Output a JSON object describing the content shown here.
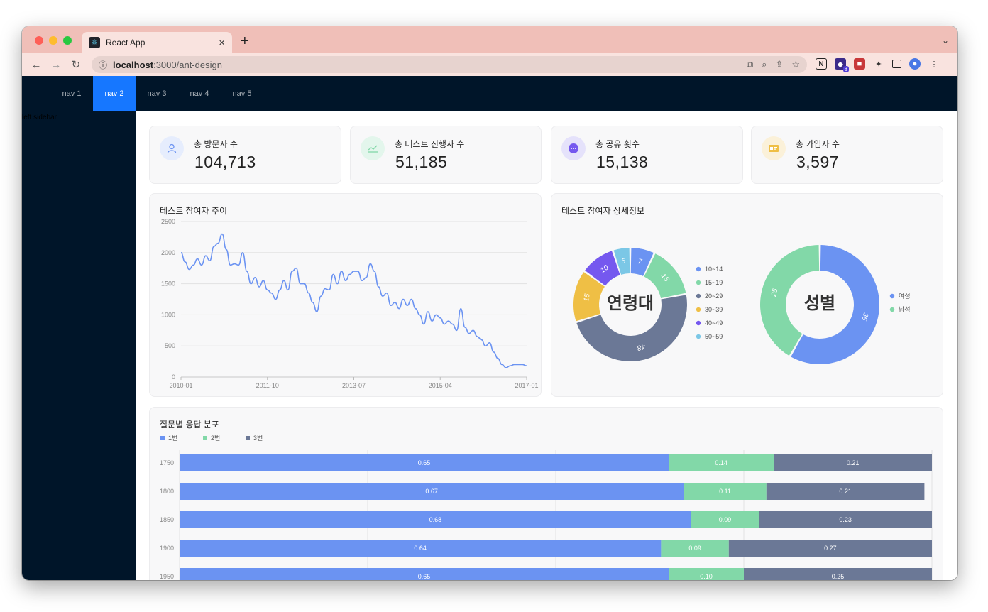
{
  "browser": {
    "tab_title": "React App",
    "tab_close": "×",
    "new_tab": "+",
    "url_host": "localhost",
    "url_path": ":3000/ant-design",
    "extension_badge": "8"
  },
  "nav": {
    "items": [
      "nav 1",
      "nav 2",
      "nav 3",
      "nav 4",
      "nav 5"
    ],
    "active_index": 1,
    "active_color": "#1677ff",
    "background": "#001529"
  },
  "sidebar": {
    "label": "left sidebar"
  },
  "stats": [
    {
      "label": "총 방문자 수",
      "value": "104,713",
      "icon": "user-icon"
    },
    {
      "label": "총 테스트 진행자 수",
      "value": "51,185",
      "icon": "line-chart-icon"
    },
    {
      "label": "총 공유 횟수",
      "value": "15,138",
      "icon": "message-icon"
    },
    {
      "label": "총 가입자 수",
      "value": "3,597",
      "icon": "id-card-icon"
    }
  ],
  "line_card": {
    "title": "테스트 참여자 추이"
  },
  "donut_card": {
    "title": "테스트 참여자 상세정보",
    "age_center": "연령대",
    "gender_center": "성별"
  },
  "bar_card": {
    "title": "질문별 응답 분포"
  },
  "chart_data": [
    {
      "type": "line",
      "title": "테스트 참여자 추이",
      "x_ticks": [
        "2010-01",
        "2011-10",
        "2013-07",
        "2015-04",
        "2017-01"
      ],
      "y_ticks": [
        0,
        500,
        1000,
        1500,
        2000,
        2500
      ],
      "ylim": [
        0,
        2500
      ],
      "grid": true,
      "color": "#6b93f2",
      "x": [
        "2010-01",
        "2010-02",
        "2010-03",
        "2010-04",
        "2010-05",
        "2010-06",
        "2010-07",
        "2010-08",
        "2010-09",
        "2010-10",
        "2010-11",
        "2010-12",
        "2011-01",
        "2011-02",
        "2011-03",
        "2011-04",
        "2011-05",
        "2011-06",
        "2011-07",
        "2011-08",
        "2011-09",
        "2011-10",
        "2011-11",
        "2011-12",
        "2012-01",
        "2012-02",
        "2012-03",
        "2012-04",
        "2012-05",
        "2012-06",
        "2012-07",
        "2012-08",
        "2012-09",
        "2012-10",
        "2012-11",
        "2012-12",
        "2013-01",
        "2013-02",
        "2013-03",
        "2013-04",
        "2013-05",
        "2013-06",
        "2013-07",
        "2013-08",
        "2013-09",
        "2013-10",
        "2013-11",
        "2013-12",
        "2014-01",
        "2014-02",
        "2014-03",
        "2014-04",
        "2014-05",
        "2014-06",
        "2014-07",
        "2014-08",
        "2014-09",
        "2014-10",
        "2014-11",
        "2014-12",
        "2015-01",
        "2015-02",
        "2015-03",
        "2015-04",
        "2015-05",
        "2015-06",
        "2015-07",
        "2015-08",
        "2015-09",
        "2015-10",
        "2015-11",
        "2015-12",
        "2016-01",
        "2016-02",
        "2016-03",
        "2016-04",
        "2016-05",
        "2016-06",
        "2016-07",
        "2016-08",
        "2016-09",
        "2016-10",
        "2016-11",
        "2016-12",
        "2017-01"
      ],
      "values": [
        2000,
        1850,
        1730,
        1800,
        1900,
        1800,
        1950,
        1870,
        2100,
        2150,
        2300,
        2050,
        1800,
        1820,
        1800,
        2000,
        1700,
        1500,
        1600,
        1450,
        1550,
        1400,
        1350,
        1250,
        1400,
        1550,
        1400,
        1700,
        1750,
        1500,
        1500,
        1350,
        1200,
        1050,
        1300,
        1420,
        1400,
        1650,
        1500,
        1700,
        1550,
        1650,
        1700,
        1700,
        1550,
        1600,
        1820,
        1700,
        1450,
        1300,
        1350,
        1150,
        1200,
        1100,
        1250,
        1150,
        1250,
        1100,
        1000,
        850,
        1050,
        900,
        1000,
        950,
        850,
        900,
        850,
        750,
        1100,
        800,
        700,
        750,
        650,
        600,
        500,
        550,
        400,
        300,
        200,
        150,
        180,
        200,
        200,
        200,
        180
      ]
    },
    {
      "type": "pie",
      "title": "연령대",
      "categories": [
        "10~14",
        "15~19",
        "20~29",
        "30~39",
        "40~49",
        "50~59"
      ],
      "values": [
        7,
        15,
        48,
        15,
        10,
        5
      ],
      "colors": [
        "#6b93f2",
        "#82d8a8",
        "#6b7896",
        "#efbf45",
        "#7558ef",
        "#7bc7e6"
      ],
      "legend": "right"
    },
    {
      "type": "pie",
      "title": "성별",
      "categories": [
        "여성",
        "남성"
      ],
      "values": [
        35,
        25
      ],
      "colors": [
        "#6b93f2",
        "#82d8a8"
      ],
      "legend": "right"
    },
    {
      "type": "bar",
      "title": "질문별 응답 분포",
      "orientation": "horizontal",
      "stacked": true,
      "categories": [
        "1750",
        "1800",
        "1850",
        "1900",
        "1950"
      ],
      "series": [
        {
          "name": "1번",
          "values": [
            0.65,
            0.67,
            0.68,
            0.64,
            0.65
          ],
          "color": "#6b93f2"
        },
        {
          "name": "2번",
          "values": [
            0.14,
            0.11,
            0.09,
            0.09,
            0.1
          ],
          "color": "#82d8a8"
        },
        {
          "name": "3번",
          "values": [
            0.21,
            0.21,
            0.23,
            0.27,
            0.25
          ],
          "color": "#6b7896"
        }
      ],
      "legend": "top-left",
      "grid": true
    }
  ]
}
